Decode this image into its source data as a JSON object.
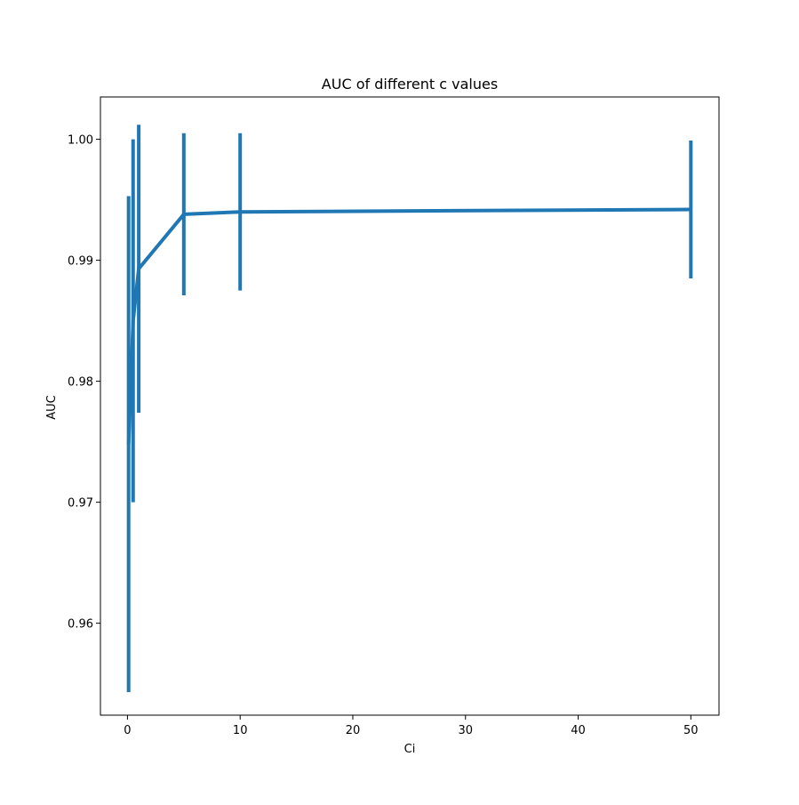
{
  "chart_data": {
    "type": "line",
    "title": "AUC of different c values",
    "xlabel": "Ci",
    "ylabel": "AUC",
    "x": [
      0.1,
      0.5,
      1,
      5,
      10,
      50
    ],
    "series": [
      {
        "values": [
          0.9748,
          0.985,
          0.9893,
          0.9938,
          0.994,
          0.9942
        ],
        "error": [
          0.0205,
          0.015,
          0.0119,
          0.0067,
          0.0065,
          0.0057
        ]
      }
    ],
    "xlim": [
      -2.4,
      52.5
    ],
    "ylim": [
      0.9524,
      1.0035
    ],
    "xticks": [
      0,
      10,
      20,
      30,
      40,
      50
    ],
    "xticklabels": [
      "0",
      "10",
      "20",
      "30",
      "40",
      "50"
    ],
    "yticks": [
      0.96,
      0.97,
      0.98,
      0.99,
      1.0
    ],
    "yticklabels": [
      "0.96",
      "0.97",
      "0.98",
      "0.99",
      "1.00"
    ],
    "grid": false,
    "line_color": "#1f77b4"
  }
}
